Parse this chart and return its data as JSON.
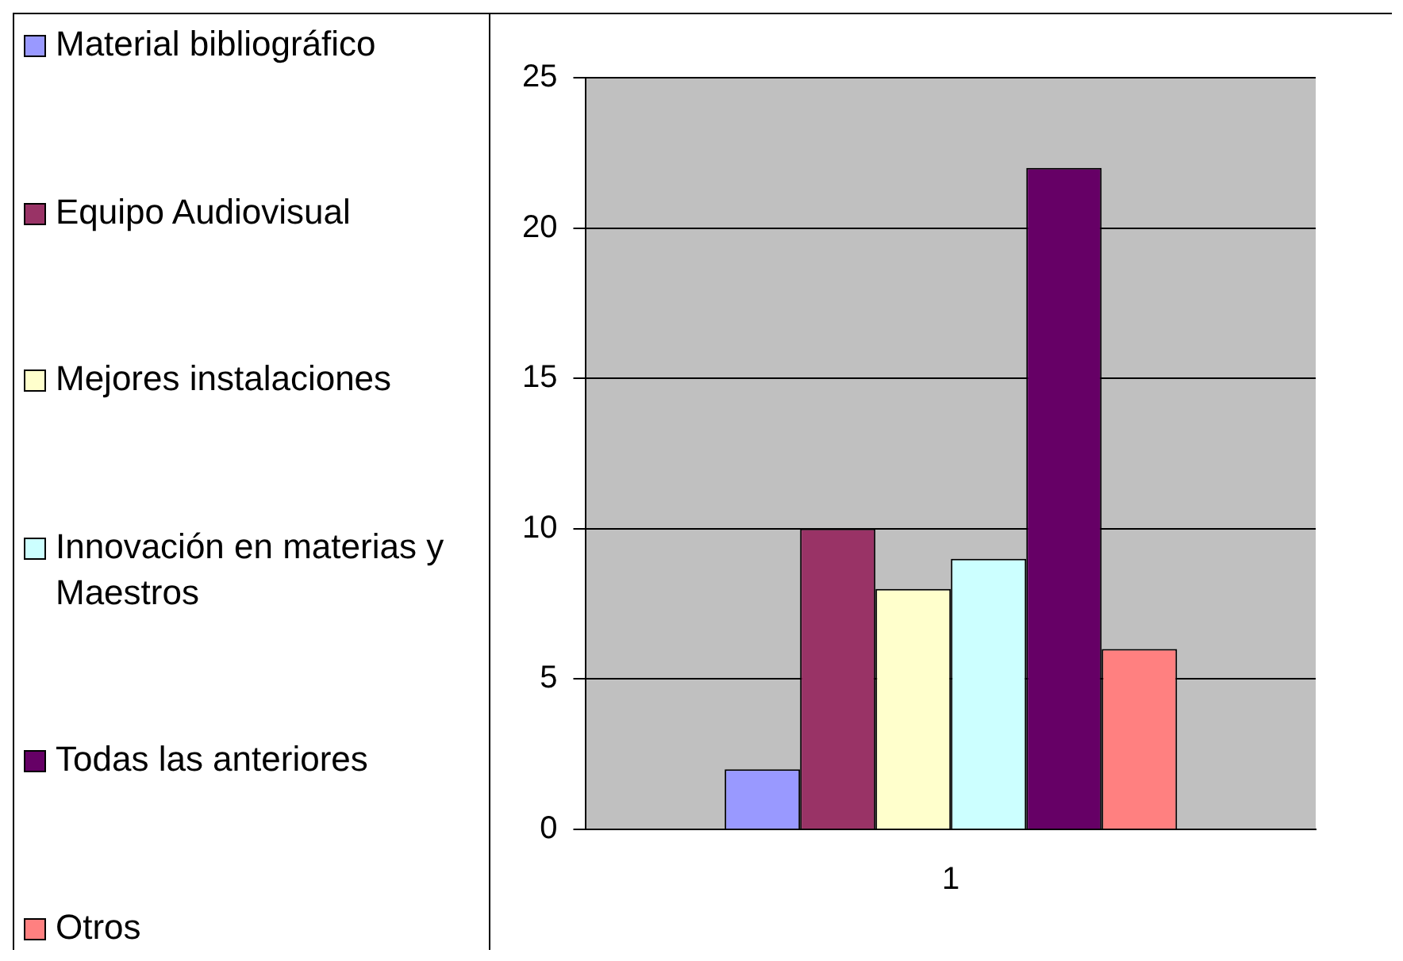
{
  "chart_data": {
    "type": "bar",
    "categories": [
      "1"
    ],
    "series": [
      {
        "name": "Material bibliográfico",
        "color": "#9999ff",
        "values": [
          2
        ]
      },
      {
        "name": "Equipo Audiovisual",
        "color": "#993366",
        "values": [
          10
        ]
      },
      {
        "name": "Mejores instalaciones",
        "color": "#ffffcc",
        "values": [
          8
        ]
      },
      {
        "name": "Innovación en materias y Maestros",
        "color": "#ccffff",
        "values": [
          9
        ]
      },
      {
        "name": "Todas las anteriores",
        "color": "#660066",
        "values": [
          22
        ]
      },
      {
        "name": "Otros",
        "color": "#ff8080",
        "values": [
          6
        ]
      }
    ],
    "ylim": [
      0,
      25
    ],
    "yticks": [
      0,
      5,
      10,
      15,
      20,
      25
    ],
    "grid": "y",
    "legend": "left"
  }
}
